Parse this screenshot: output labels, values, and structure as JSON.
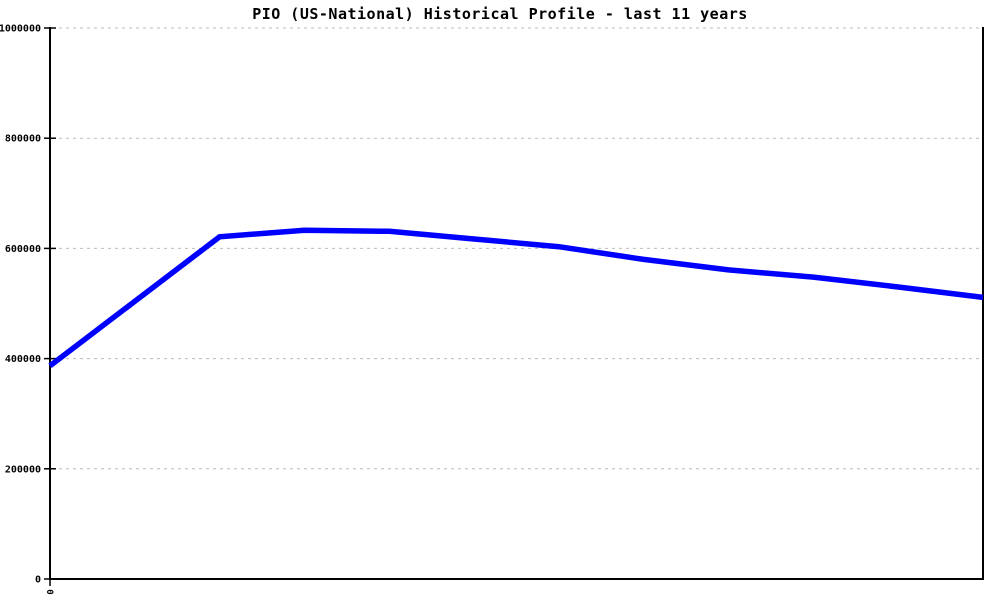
{
  "chart_data": {
    "type": "line",
    "title": "PIO (US-National) Historical Profile - last 11 years",
    "xlabel": "",
    "ylabel": "",
    "x": [
      0,
      1,
      2,
      3,
      4,
      5,
      6,
      7,
      8,
      9,
      10,
      11
    ],
    "series": [
      {
        "name": "PIO (US-National)",
        "color": "#0000ff",
        "values": [
          387000,
          504000,
          621000,
          633000,
          631000,
          617000,
          603000,
          580000,
          561000,
          548000,
          530000,
          511000
        ]
      }
    ],
    "ylim": [
      0,
      1000000
    ],
    "y_ticks": [
      0,
      200000,
      400000,
      600000,
      800000,
      1000000
    ],
    "y_tick_labels": [
      "0",
      "200000",
      "400000",
      "600000",
      "800000",
      "1000000"
    ],
    "x_tick_labels": [
      "0"
    ],
    "grid": "horizontal-dashed",
    "legend": "none",
    "grid_color": "#bbbbbb",
    "axis_color": "#000000",
    "line_width": 5.5
  }
}
